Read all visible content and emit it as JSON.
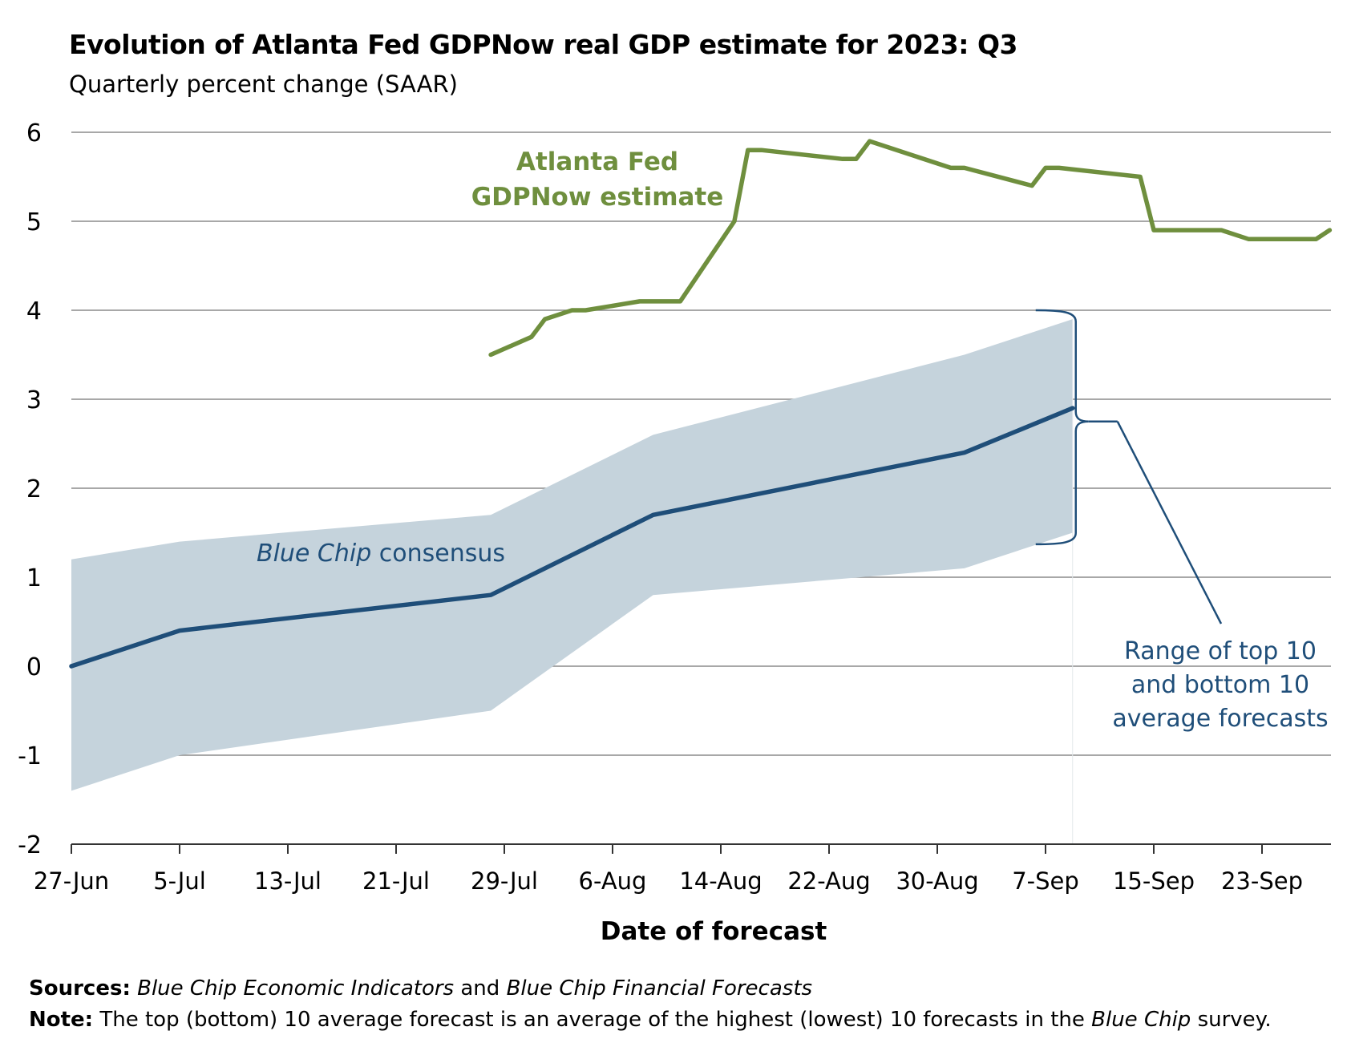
{
  "title": "Evolution of Atlanta Fed GDPNow real GDP estimate for 2023: Q3",
  "subtitle": "Quarterly percent change (SAAR)",
  "chart_data": {
    "type": "line",
    "xlabel": "Date of forecast",
    "ylim": [
      -2,
      6
    ],
    "yticks": [
      "6",
      "5",
      "4",
      "3",
      "2",
      "1",
      "0",
      "-1",
      "-2"
    ],
    "xticks": [
      "27-Jun",
      "5-Jul",
      "13-Jul",
      "21-Jul",
      "29-Jul",
      "6-Aug",
      "14-Aug",
      "22-Aug",
      "30-Aug",
      "7-Sep",
      "15-Sep",
      "23-Sep"
    ],
    "grid": "horizontal",
    "colors": {
      "gdpnow": "#6f8f3e",
      "bluechip": "#1f4e79",
      "range": "#c5d3dc"
    },
    "series": [
      {
        "name": "Atlanta Fed GDPNow estimate",
        "points": [
          [
            "28-Jul",
            3.5
          ],
          [
            "31-Jul",
            3.7
          ],
          [
            "1-Aug",
            3.9
          ],
          [
            "3-Aug",
            4.0
          ],
          [
            "4-Aug",
            4.0
          ],
          [
            "8-Aug",
            4.1
          ],
          [
            "10-Aug",
            4.1
          ],
          [
            "11-Aug",
            4.1
          ],
          [
            "15-Aug",
            5.0
          ],
          [
            "16-Aug",
            5.8
          ],
          [
            "17-Aug",
            5.8
          ],
          [
            "23-Aug",
            5.7
          ],
          [
            "24-Aug",
            5.7
          ],
          [
            "25-Aug",
            5.9
          ],
          [
            "31-Aug",
            5.6
          ],
          [
            "1-Sep",
            5.6
          ],
          [
            "6-Sep",
            5.4
          ],
          [
            "7-Sep",
            5.6
          ],
          [
            "8-Sep",
            5.6
          ],
          [
            "14-Sep",
            5.5
          ],
          [
            "15-Sep",
            4.9
          ],
          [
            "19-Sep",
            4.9
          ],
          [
            "20-Sep",
            4.9
          ],
          [
            "22-Sep",
            4.8
          ],
          [
            "27-Sep",
            4.8
          ],
          [
            "28-Sep",
            4.9
          ]
        ]
      },
      {
        "name": "Blue Chip consensus",
        "points": [
          [
            "27-Jun",
            0.0
          ],
          [
            "5-Jul",
            0.4
          ],
          [
            "28-Jul",
            0.8
          ],
          [
            "9-Aug",
            1.7
          ],
          [
            "1-Sep",
            2.4
          ],
          [
            "9-Sep",
            2.9
          ]
        ]
      }
    ],
    "range": {
      "name": "Range of top 10 and bottom 10 average forecasts",
      "points": [
        [
          "27-Jun",
          -1.4,
          1.2
        ],
        [
          "5-Jul",
          -1.0,
          1.4
        ],
        [
          "28-Jul",
          -0.5,
          1.7
        ],
        [
          "9-Aug",
          0.8,
          2.6
        ],
        [
          "1-Sep",
          1.1,
          3.5
        ],
        [
          "9-Sep",
          1.5,
          3.9
        ]
      ]
    },
    "annotations": {
      "gdpnow": [
        "Atlanta Fed",
        "GDPNow estimate"
      ],
      "bluechip_italic": "Blue Chip",
      "bluechip_rest": " consensus",
      "range": [
        "Range of top 10",
        "and bottom 10",
        "average forecasts"
      ]
    }
  },
  "footer": {
    "sources_label": "Sources:",
    "sources_text": [
      {
        "t": " Blue Chip Economic Indicators",
        "i": true
      },
      {
        "t": " and ",
        "i": false
      },
      {
        "t": "Blue Chip Financial Forecasts",
        "i": true
      }
    ],
    "note_label": "Note:",
    "note_text": [
      {
        "t": " The top (bottom) 10 average forecast is an average of the highest (lowest) 10 forecasts in the ",
        "i": false
      },
      {
        "t": "Blue Chip",
        "i": true
      },
      {
        "t": " survey.",
        "i": false
      }
    ]
  }
}
